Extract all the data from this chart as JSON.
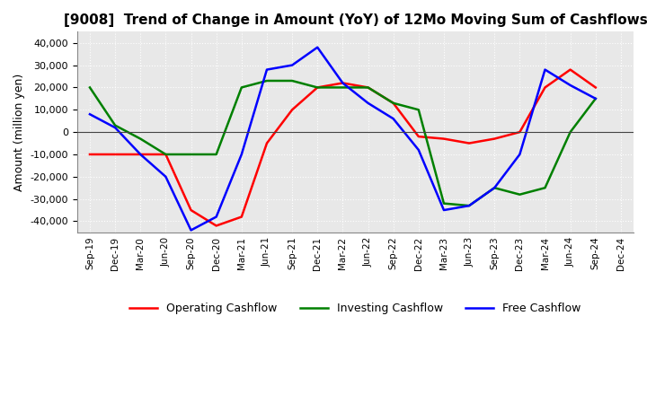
{
  "title": "[9008]  Trend of Change in Amount (YoY) of 12Mo Moving Sum of Cashflows",
  "ylabel": "Amount (million yen)",
  "ylim": [
    -45000,
    45000
  ],
  "yticks": [
    -40000,
    -30000,
    -20000,
    -10000,
    0,
    10000,
    20000,
    30000,
    40000
  ],
  "x_labels": [
    "Sep-19",
    "Dec-19",
    "Mar-20",
    "Jun-20",
    "Sep-20",
    "Dec-20",
    "Mar-21",
    "Jun-21",
    "Sep-21",
    "Dec-21",
    "Mar-22",
    "Jun-22",
    "Sep-22",
    "Dec-22",
    "Mar-23",
    "Jun-23",
    "Sep-23",
    "Dec-23",
    "Mar-24",
    "Jun-24",
    "Sep-24",
    "Dec-24"
  ],
  "operating": [
    -10000,
    -10000,
    -10000,
    -10000,
    -35000,
    -42000,
    -38000,
    -5000,
    10000,
    20000,
    22000,
    20000,
    13000,
    -2000,
    -3000,
    -5000,
    -3000,
    0,
    20000,
    28000,
    20000,
    null
  ],
  "investing": [
    20000,
    3000,
    -3000,
    -10000,
    -10000,
    -10000,
    20000,
    23000,
    23000,
    20000,
    20000,
    20000,
    13000,
    10000,
    -32000,
    -33000,
    -25000,
    -28000,
    -25000,
    0,
    15000,
    null
  ],
  "free": [
    8000,
    2000,
    -10000,
    -20000,
    -44000,
    -38000,
    -10000,
    28000,
    30000,
    38000,
    22000,
    13000,
    6000,
    -8000,
    -35000,
    -33000,
    -25000,
    -10000,
    28000,
    21000,
    15000,
    null
  ],
  "op_color": "#ff0000",
  "inv_color": "#008000",
  "free_color": "#0000ff",
  "bg_color": "#e8e8e8",
  "grid_color": "#ffffff",
  "title_fontsize": 11,
  "legend_labels": [
    "Operating Cashflow",
    "Investing Cashflow",
    "Free Cashflow"
  ]
}
